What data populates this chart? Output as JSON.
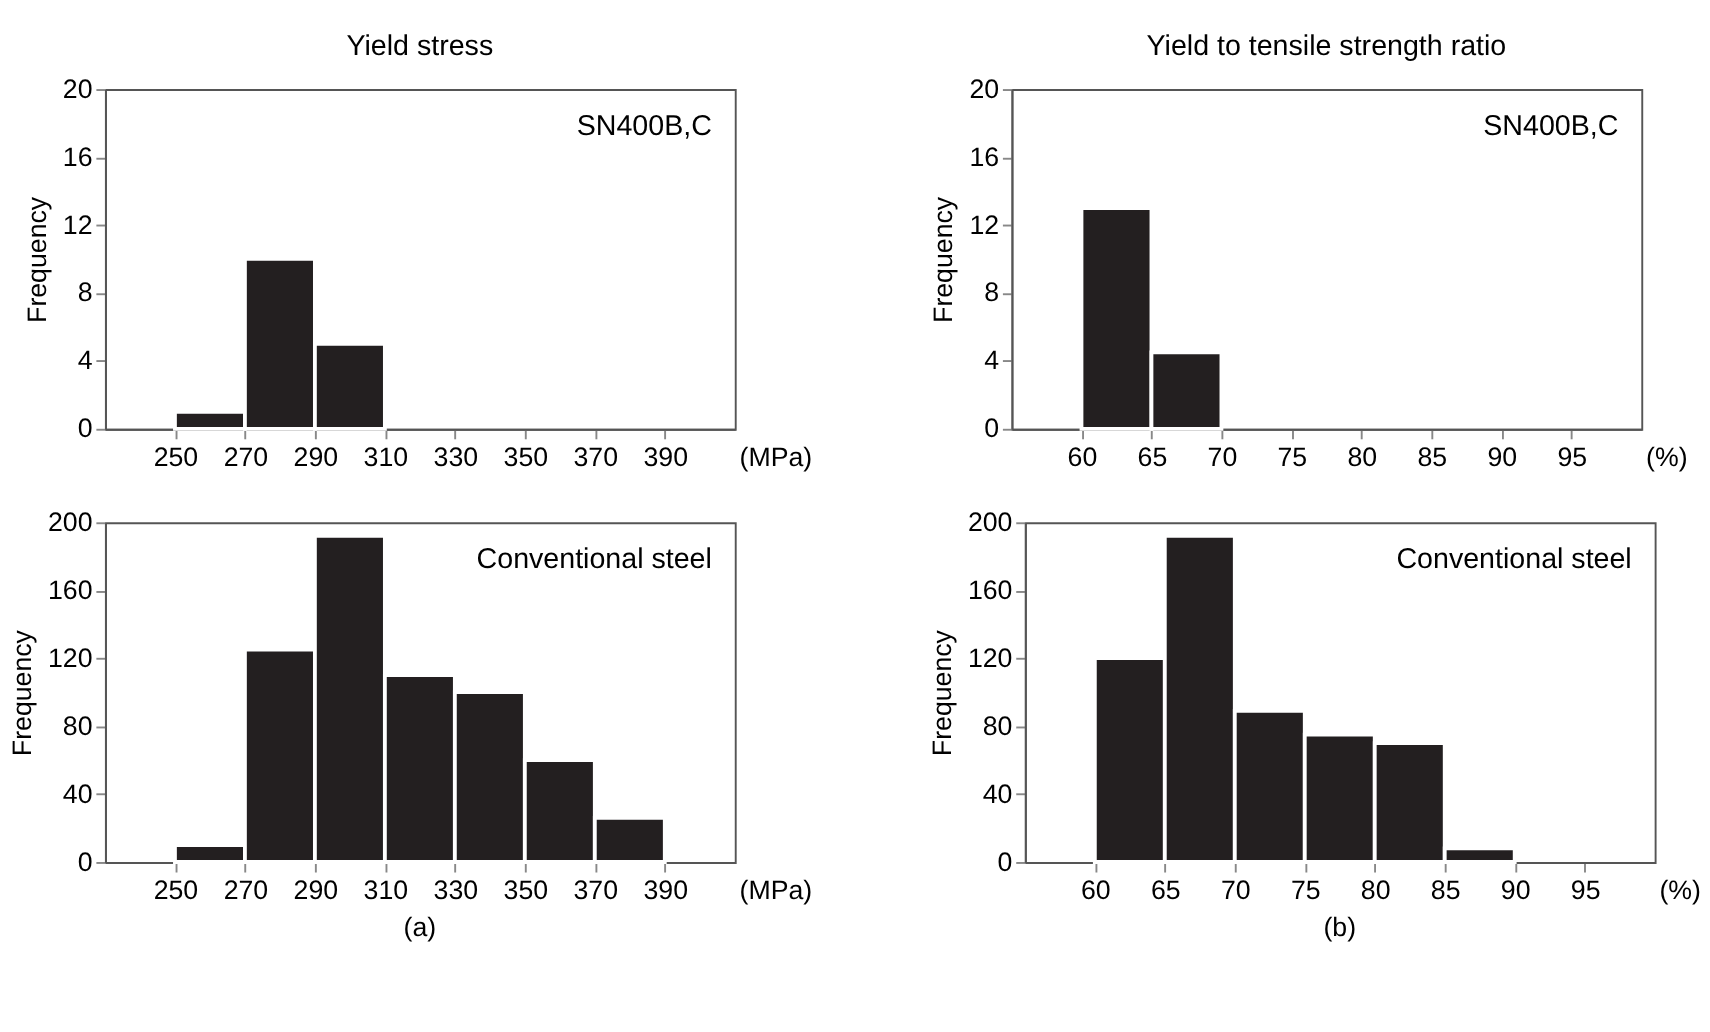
{
  "chart_data": [
    {
      "type": "histogram",
      "title": "Yield stress",
      "xlabel": "(MPa)",
      "ylabel": "Frequency",
      "bins": [
        250,
        270,
        290,
        310
      ],
      "values": [
        1,
        10,
        5
      ],
      "color": "#231f20",
      "xlim": [
        230,
        410
      ],
      "xticks": [
        250,
        270,
        290,
        310,
        330,
        350,
        370,
        390
      ],
      "ylim": [
        0,
        20
      ],
      "yticks": [
        0,
        4,
        8,
        12,
        16,
        20
      ],
      "annotations": [
        "SN400B,C"
      ],
      "grid": false
    },
    {
      "type": "histogram",
      "title": "Yield to tensile strength ratio",
      "xlabel": "(%)",
      "ylabel": "Frequency",
      "bins": [
        60,
        65,
        70
      ],
      "values": [
        13,
        4.5
      ],
      "color": "#231f20",
      "xlim": [
        55,
        100
      ],
      "xticks": [
        60,
        65,
        70,
        75,
        80,
        85,
        90,
        95
      ],
      "ylim": [
        0,
        20
      ],
      "yticks": [
        0,
        4,
        8,
        12,
        16,
        20
      ],
      "annotations": [
        "SN400B,C"
      ],
      "grid": false
    },
    {
      "type": "histogram",
      "xlabel": "(MPa)",
      "ylabel": "Frequency",
      "bins": [
        250,
        270,
        290,
        310,
        330,
        350,
        370,
        390
      ],
      "values": [
        10,
        125,
        192,
        110,
        100,
        60,
        26
      ],
      "color": "#231f20",
      "xlim": [
        230,
        410
      ],
      "xticks": [
        250,
        270,
        290,
        310,
        330,
        350,
        370,
        390
      ],
      "ylim": [
        0,
        200
      ],
      "yticks": [
        0,
        40,
        80,
        120,
        160,
        200
      ],
      "annotations": [
        "Conventional steel",
        "(a)"
      ],
      "grid": false
    },
    {
      "type": "histogram",
      "xlabel": "(%)",
      "ylabel": "Frequency",
      "bins": [
        60,
        65,
        70,
        75,
        80,
        85,
        90
      ],
      "values": [
        120,
        192,
        89,
        75,
        70,
        8
      ],
      "color": "#231f20",
      "xlim": [
        55,
        100
      ],
      "xticks": [
        60,
        65,
        70,
        75,
        80,
        85,
        90,
        95
      ],
      "ylim": [
        0,
        200
      ],
      "yticks": [
        0,
        40,
        80,
        120,
        160,
        200
      ],
      "annotations": [
        "Conventional steel",
        "(b)"
      ],
      "grid": false
    }
  ]
}
